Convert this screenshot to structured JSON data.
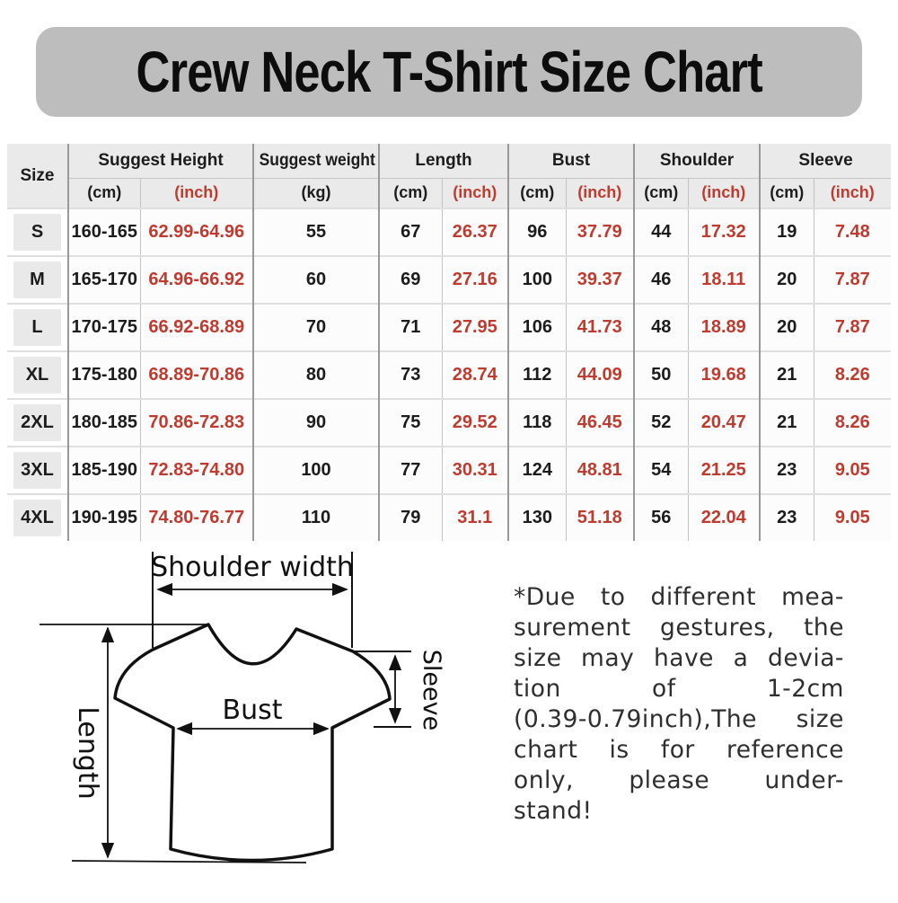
{
  "title": "Crew Neck T-Shirt Size Chart",
  "table": {
    "groups": {
      "size": "Size",
      "height": "Suggest Height",
      "weight": "Suggest weight",
      "length": "Length",
      "bust": "Bust",
      "shoulder": "Shoulder",
      "sleeve": "Sleeve"
    },
    "units": {
      "cm": "(cm)",
      "inch": "(inch)",
      "kg": "(kg)"
    },
    "rows": [
      {
        "size": "S",
        "cells": [
          "160-165",
          "62.99-64.96",
          "55",
          "67",
          "26.37",
          "96",
          "37.79",
          "44",
          "17.32",
          "19",
          "7.48"
        ]
      },
      {
        "size": "M",
        "cells": [
          "165-170",
          "64.96-66.92",
          "60",
          "69",
          "27.16",
          "100",
          "39.37",
          "46",
          "18.11",
          "20",
          "7.87"
        ]
      },
      {
        "size": "L",
        "cells": [
          "170-175",
          "66.92-68.89",
          "70",
          "71",
          "27.95",
          "106",
          "41.73",
          "48",
          "18.89",
          "20",
          "7.87"
        ]
      },
      {
        "size": "XL",
        "cells": [
          "175-180",
          "68.89-70.86",
          "80",
          "73",
          "28.74",
          "112",
          "44.09",
          "50",
          "19.68",
          "21",
          "8.26"
        ]
      },
      {
        "size": "2XL",
        "cells": [
          "180-185",
          "70.86-72.83",
          "90",
          "75",
          "29.52",
          "118",
          "46.45",
          "52",
          "20.47",
          "21",
          "8.26"
        ]
      },
      {
        "size": "3XL",
        "cells": [
          "185-190",
          "72.83-74.80",
          "100",
          "77",
          "30.31",
          "124",
          "48.81",
          "54",
          "21.25",
          "23",
          "9.05"
        ]
      },
      {
        "size": "4XL",
        "cells": [
          "190-195",
          "74.80-76.77",
          "110",
          "79",
          "31.1",
          "130",
          "51.18",
          "56",
          "22.04",
          "23",
          "9.05"
        ]
      }
    ]
  },
  "diagram": {
    "shoulder_label": "Shoulder width",
    "bust_label": "Bust",
    "sleeve_label": "Sleeve",
    "length_label": "Length"
  },
  "note": "*Due to different mea-\nsurement gestures, the\nsize may have a devia-\ntion of 1-2cm\n(0.39-0.79inch),The size\nchart is for reference\nonly, please under-\nstand!",
  "colors": {
    "accent_red": "#bf3b2f",
    "banner_gray": "#bdbdbd",
    "header_gray": "#eaeaea"
  }
}
